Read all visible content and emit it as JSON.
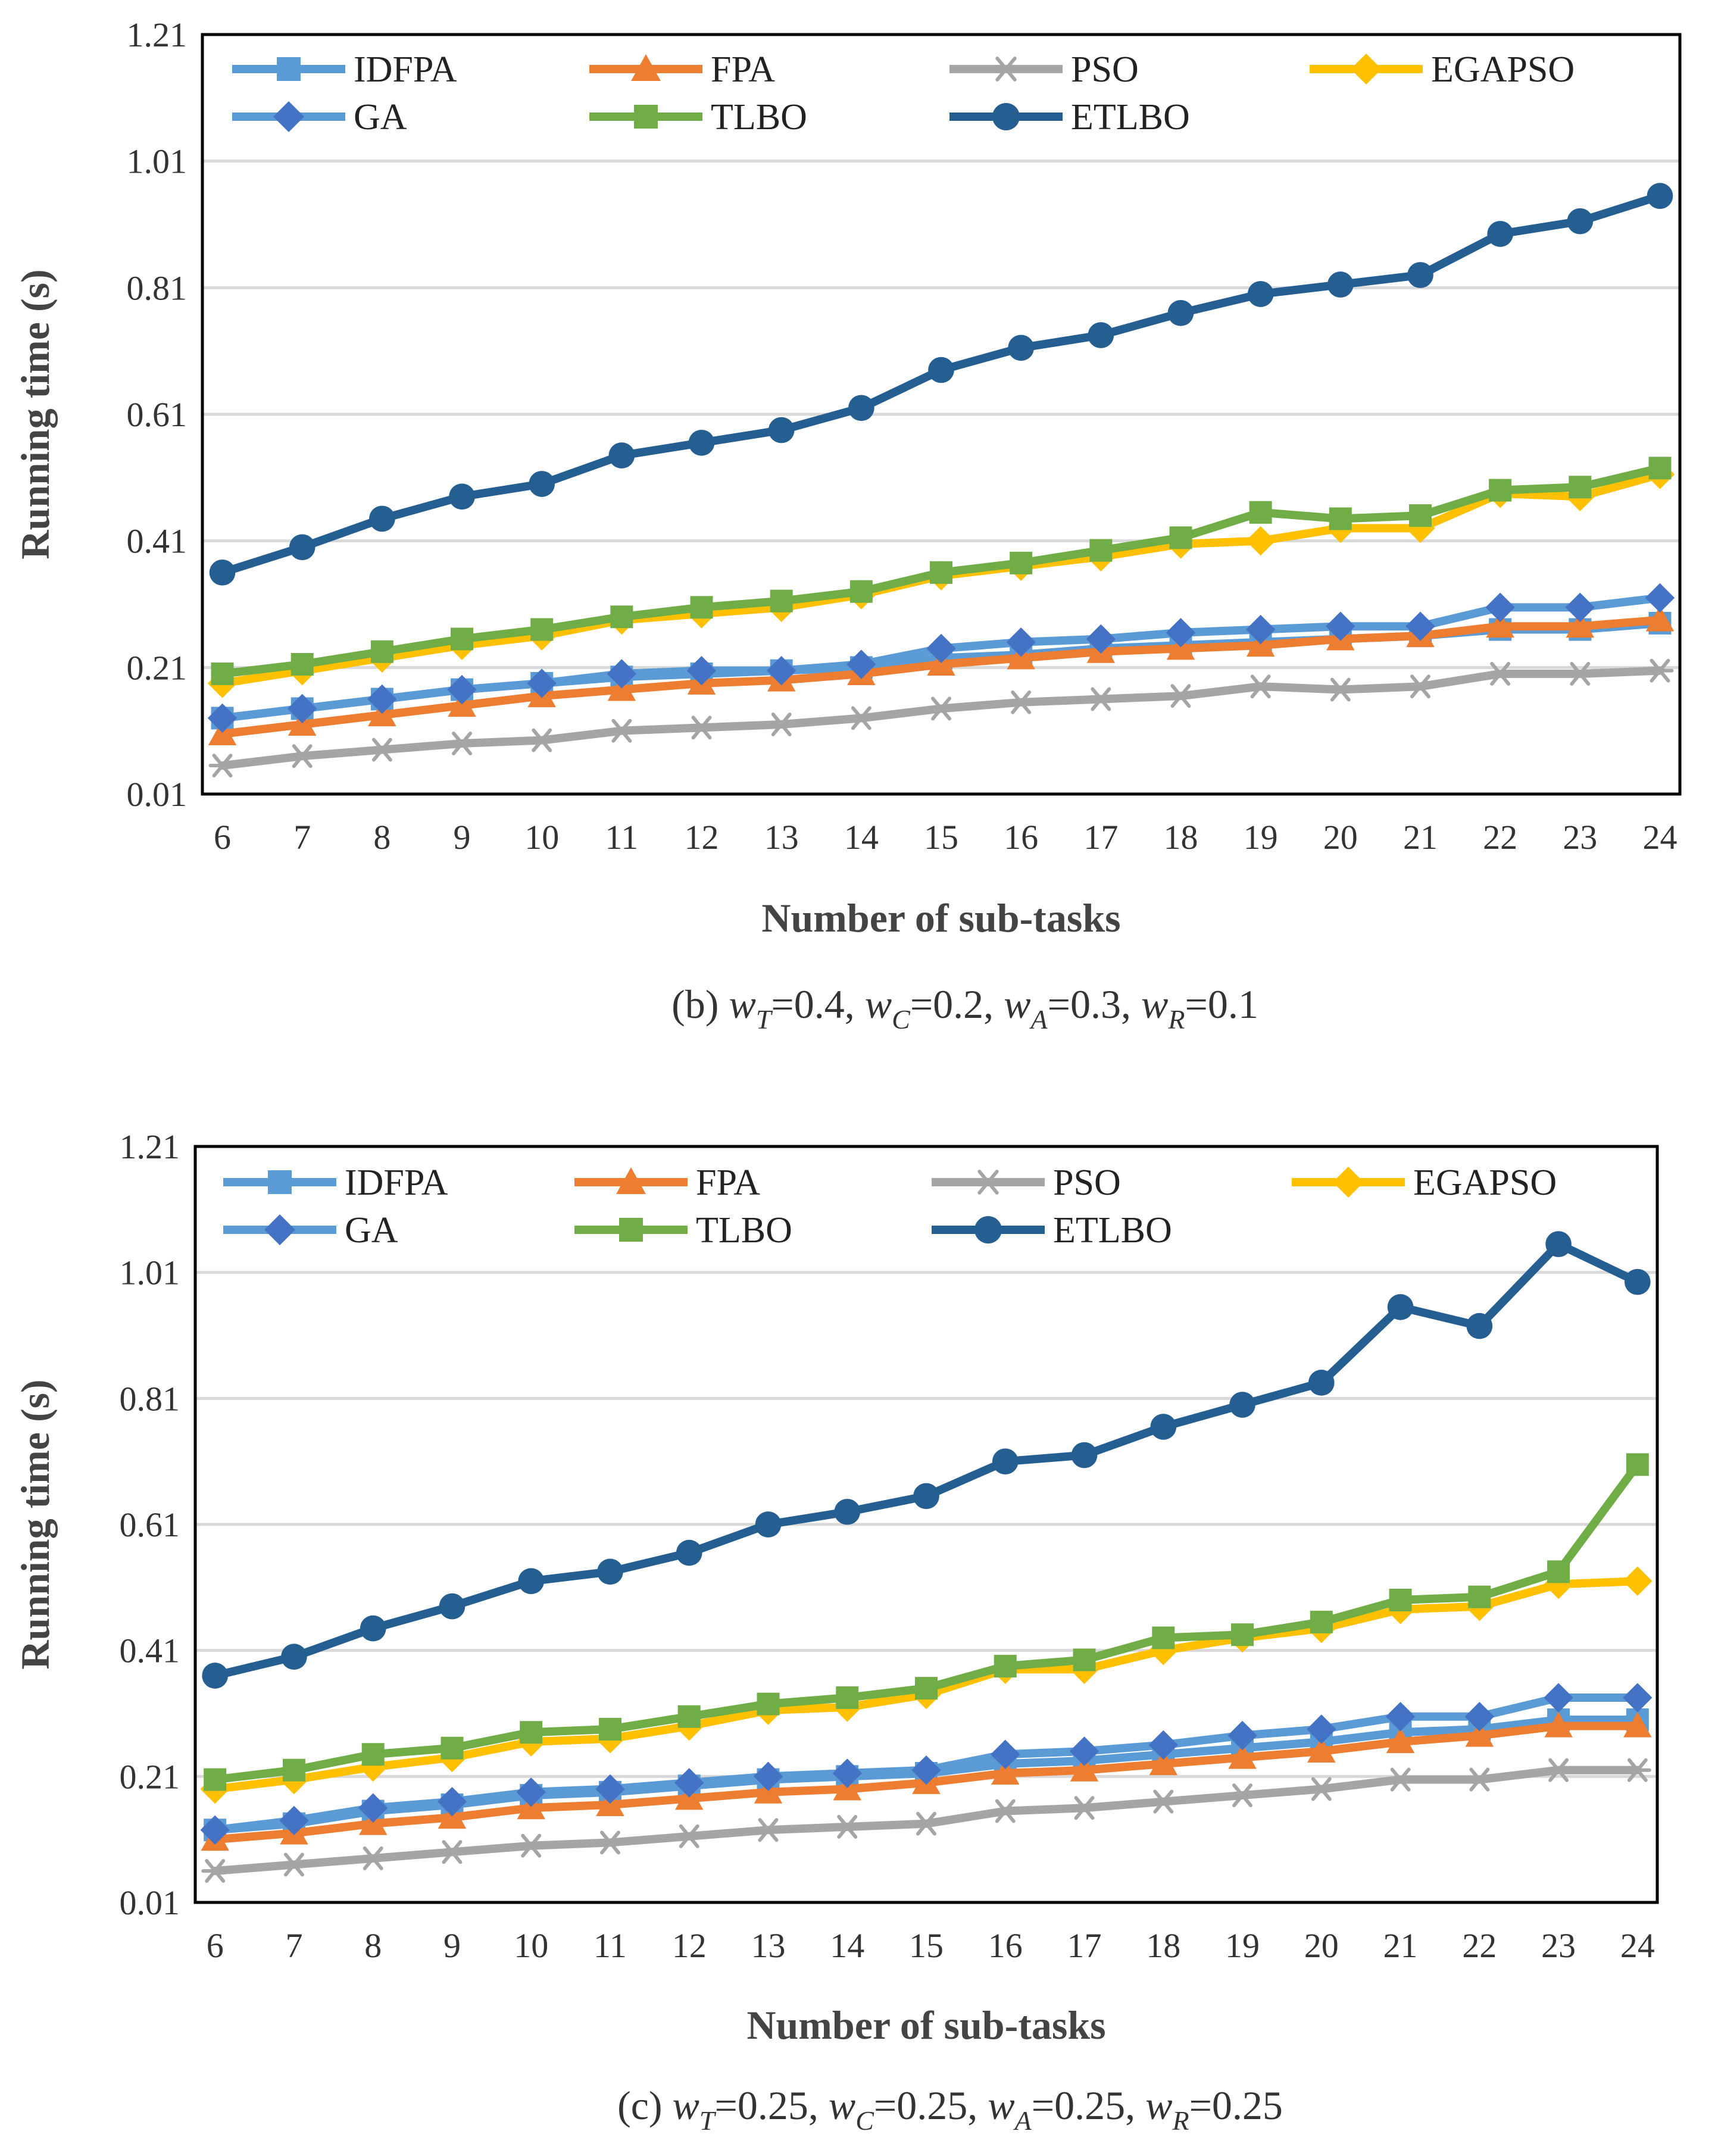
{
  "chart_data": [
    {
      "type": "line",
      "panel": "b",
      "caption": {
        "label": "(b) ",
        "terms": [
          {
            "var": "w",
            "sub": "T",
            "value": "=0.4",
            "sep": ", "
          },
          {
            "var": "w",
            "sub": "C",
            "value": "=0.2",
            "sep": ", "
          },
          {
            "var": "w",
            "sub": "A",
            "value": "=0.3",
            "sep": ", "
          },
          {
            "var": "w",
            "sub": "R",
            "value": "=0.1",
            "sep": ""
          }
        ]
      },
      "xlabel": "Number of sub-tasks",
      "ylabel": "Running time (s)",
      "x": [
        6,
        7,
        8,
        9,
        10,
        11,
        12,
        13,
        14,
        15,
        16,
        17,
        18,
        19,
        20,
        21,
        22,
        23,
        24
      ],
      "xticks": [
        "6",
        "7",
        "8",
        "9",
        "10",
        "11",
        "12",
        "13",
        "14",
        "15",
        "16",
        "17",
        "18",
        "19",
        "20",
        "21",
        "22",
        "23",
        "24"
      ],
      "yticks": [
        "0.01",
        "0.21",
        "0.41",
        "0.61",
        "0.81",
        "1.01",
        "1.21"
      ],
      "ylim": [
        0.01,
        1.21
      ],
      "grid": true,
      "legend_position": "top",
      "series": [
        {
          "name": "IDFPA",
          "color": "#5b9bd5",
          "marker": "square",
          "values": [
            0.13,
            0.145,
            0.16,
            0.175,
            0.185,
            0.195,
            0.2,
            0.205,
            0.21,
            0.225,
            0.23,
            0.24,
            0.245,
            0.25,
            0.255,
            0.26,
            0.27,
            0.27,
            0.28
          ]
        },
        {
          "name": "FPA",
          "color": "#ed7d31",
          "marker": "triangle",
          "values": [
            0.105,
            0.12,
            0.135,
            0.15,
            0.165,
            0.175,
            0.185,
            0.19,
            0.2,
            0.215,
            0.225,
            0.235,
            0.24,
            0.245,
            0.255,
            0.26,
            0.275,
            0.275,
            0.285
          ]
        },
        {
          "name": "PSO",
          "color": "#a5a5a5",
          "marker": "asterisk",
          "values": [
            0.055,
            0.07,
            0.08,
            0.09,
            0.095,
            0.11,
            0.115,
            0.12,
            0.13,
            0.145,
            0.155,
            0.16,
            0.165,
            0.18,
            0.175,
            0.18,
            0.2,
            0.2,
            0.205
          ]
        },
        {
          "name": "EGAPSO",
          "color": "#ffc000",
          "marker": "diamond",
          "values": [
            0.185,
            0.205,
            0.225,
            0.245,
            0.26,
            0.285,
            0.295,
            0.305,
            0.325,
            0.355,
            0.37,
            0.385,
            0.405,
            0.41,
            0.43,
            0.43,
            0.485,
            0.48,
            0.515
          ]
        },
        {
          "name": "GA",
          "color": "#4472c4",
          "line_color": "#5b9bd5",
          "marker": "diamond",
          "values": [
            0.13,
            0.145,
            0.16,
            0.175,
            0.185,
            0.2,
            0.205,
            0.205,
            0.215,
            0.24,
            0.25,
            0.255,
            0.265,
            0.27,
            0.275,
            0.275,
            0.305,
            0.305,
            0.32
          ]
        },
        {
          "name": "TLBO",
          "color": "#70ad47",
          "marker": "square",
          "values": [
            0.2,
            0.215,
            0.235,
            0.255,
            0.27,
            0.29,
            0.305,
            0.315,
            0.33,
            0.36,
            0.375,
            0.395,
            0.415,
            0.455,
            0.445,
            0.45,
            0.49,
            0.495,
            0.525
          ]
        },
        {
          "name": "ETLBO",
          "color": "#255e91",
          "marker": "circle",
          "values": [
            0.36,
            0.4,
            0.445,
            0.48,
            0.5,
            0.545,
            0.565,
            0.585,
            0.62,
            0.68,
            0.715,
            0.735,
            0.77,
            0.8,
            0.815,
            0.83,
            0.895,
            0.915,
            0.955
          ]
        }
      ]
    },
    {
      "type": "line",
      "panel": "c",
      "caption": {
        "label": "(c) ",
        "terms": [
          {
            "var": "w",
            "sub": "T",
            "value": "=0.25",
            "sep": ", "
          },
          {
            "var": "w",
            "sub": "C",
            "value": "=0.25",
            "sep": ", "
          },
          {
            "var": "w",
            "sub": "A",
            "value": "=0.25",
            "sep": ", "
          },
          {
            "var": "w",
            "sub": "R",
            "value": "=0.25",
            "sep": ""
          }
        ]
      },
      "xlabel": "Number of sub-tasks",
      "ylabel": "Running time (s)",
      "x": [
        6,
        7,
        8,
        9,
        10,
        11,
        12,
        13,
        14,
        15,
        16,
        17,
        18,
        19,
        20,
        21,
        22,
        23,
        24
      ],
      "xticks": [
        "6",
        "7",
        "8",
        "9",
        "10",
        "11",
        "12",
        "13",
        "14",
        "15",
        "16",
        "17",
        "18",
        "19",
        "20",
        "21",
        "22",
        "23",
        "24"
      ],
      "yticks": [
        "0.01",
        "0.21",
        "0.41",
        "0.61",
        "0.81",
        "1.01",
        "1.21"
      ],
      "ylim": [
        0.01,
        1.21
      ],
      "grid": true,
      "legend_position": "top",
      "series": [
        {
          "name": "IDFPA",
          "color": "#5b9bd5",
          "marker": "square",
          "values": [
            0.125,
            0.135,
            0.155,
            0.165,
            0.18,
            0.185,
            0.195,
            0.205,
            0.21,
            0.215,
            0.23,
            0.235,
            0.245,
            0.255,
            0.265,
            0.28,
            0.285,
            0.3,
            0.3
          ]
        },
        {
          "name": "FPA",
          "color": "#ed7d31",
          "marker": "triangle",
          "values": [
            0.11,
            0.12,
            0.135,
            0.145,
            0.16,
            0.165,
            0.175,
            0.185,
            0.19,
            0.2,
            0.215,
            0.22,
            0.23,
            0.24,
            0.25,
            0.265,
            0.275,
            0.29,
            0.29
          ]
        },
        {
          "name": "PSO",
          "color": "#a5a5a5",
          "marker": "asterisk",
          "values": [
            0.06,
            0.07,
            0.08,
            0.09,
            0.1,
            0.105,
            0.115,
            0.125,
            0.13,
            0.135,
            0.155,
            0.16,
            0.17,
            0.18,
            0.19,
            0.205,
            0.205,
            0.22,
            0.22
          ]
        },
        {
          "name": "EGAPSO",
          "color": "#ffc000",
          "marker": "diamond",
          "values": [
            0.19,
            0.205,
            0.225,
            0.24,
            0.265,
            0.27,
            0.29,
            0.315,
            0.32,
            0.34,
            0.38,
            0.38,
            0.41,
            0.43,
            0.445,
            0.475,
            0.48,
            0.515,
            0.52
          ]
        },
        {
          "name": "GA",
          "color": "#4472c4",
          "line_color": "#5b9bd5",
          "marker": "diamond",
          "values": [
            0.125,
            0.14,
            0.16,
            0.17,
            0.185,
            0.19,
            0.2,
            0.21,
            0.215,
            0.22,
            0.245,
            0.25,
            0.26,
            0.275,
            0.285,
            0.305,
            0.305,
            0.335,
            0.335
          ]
        },
        {
          "name": "TLBO",
          "color": "#70ad47",
          "marker": "square",
          "values": [
            0.205,
            0.22,
            0.245,
            0.255,
            0.28,
            0.285,
            0.305,
            0.325,
            0.335,
            0.35,
            0.385,
            0.395,
            0.43,
            0.435,
            0.455,
            0.49,
            0.495,
            0.535,
            0.705
          ]
        },
        {
          "name": "ETLBO",
          "color": "#255e91",
          "marker": "circle",
          "values": [
            0.37,
            0.4,
            0.445,
            0.48,
            0.52,
            0.535,
            0.565,
            0.61,
            0.63,
            0.655,
            0.71,
            0.72,
            0.765,
            0.8,
            0.835,
            0.955,
            0.925,
            1.055,
            0.995
          ]
        }
      ]
    }
  ]
}
